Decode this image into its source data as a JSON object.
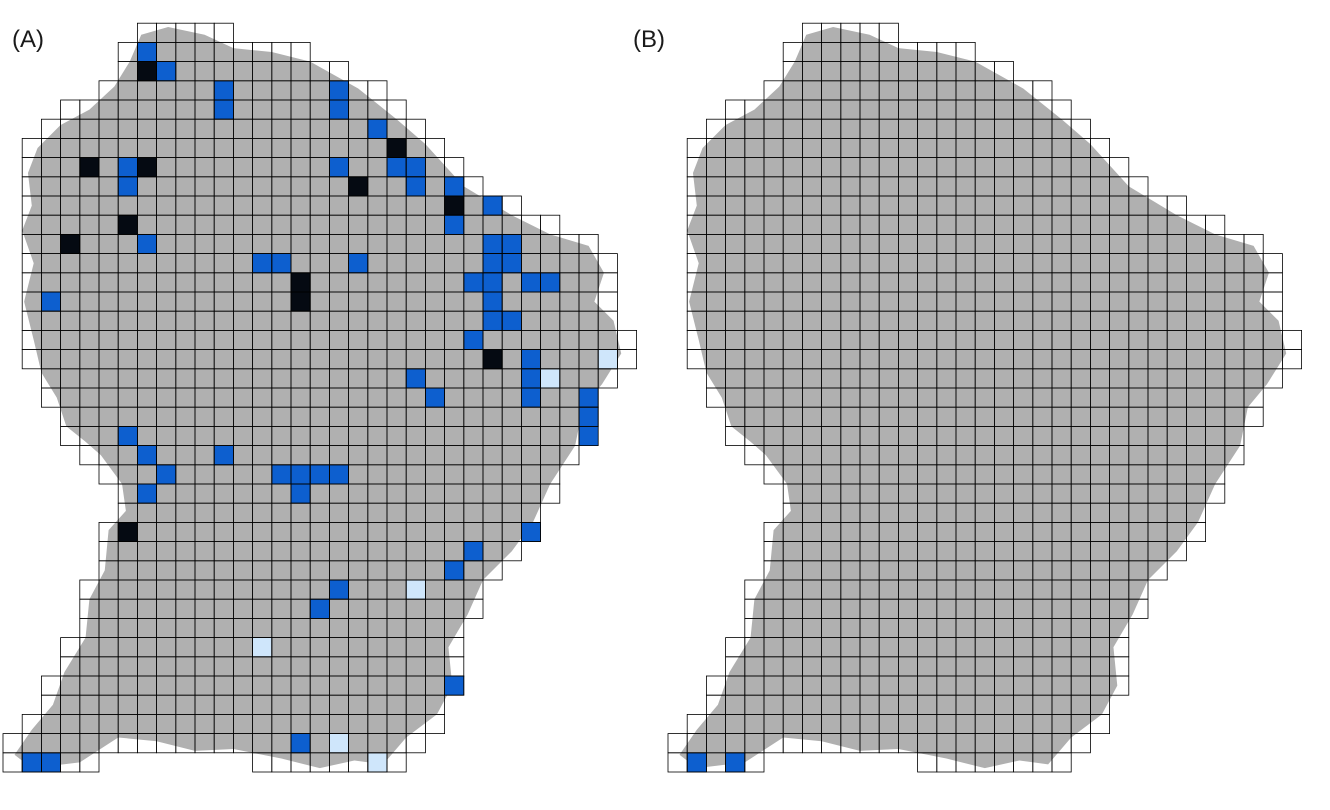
{
  "colors": {
    "land": "#b0b0b0",
    "grid_line": "#000000",
    "cell_low": "#cfe6fb",
    "cell_mid": "#0d5fcf",
    "cell_high": "#050a12"
  },
  "panels": [
    {
      "label": "(A)",
      "grid_origin": [
        3.0,
        4.0
      ],
      "highlighted_cells": [
        {
          "c": 7,
          "r": 2,
          "level": "mid"
        },
        {
          "c": 7,
          "r": 3,
          "level": "high"
        },
        {
          "c": 8,
          "r": 3,
          "level": "mid"
        },
        {
          "c": 11,
          "r": 4,
          "level": "mid"
        },
        {
          "c": 11,
          "r": 5,
          "level": "mid"
        },
        {
          "c": 17,
          "r": 4,
          "level": "mid"
        },
        {
          "c": 17,
          "r": 5,
          "level": "mid"
        },
        {
          "c": 19,
          "r": 6,
          "level": "mid"
        },
        {
          "c": 20,
          "r": 7,
          "level": "high"
        },
        {
          "c": 4,
          "r": 8,
          "level": "high"
        },
        {
          "c": 6,
          "r": 8,
          "level": "mid"
        },
        {
          "c": 7,
          "r": 8,
          "level": "high"
        },
        {
          "c": 6,
          "r": 9,
          "level": "mid"
        },
        {
          "c": 17,
          "r": 8,
          "level": "mid"
        },
        {
          "c": 20,
          "r": 8,
          "level": "mid"
        },
        {
          "c": 21,
          "r": 8,
          "level": "mid"
        },
        {
          "c": 21,
          "r": 9,
          "level": "mid"
        },
        {
          "c": 18,
          "r": 9,
          "level": "high"
        },
        {
          "c": 23,
          "r": 9,
          "level": "mid"
        },
        {
          "c": 23,
          "r": 10,
          "level": "high"
        },
        {
          "c": 25,
          "r": 10,
          "level": "mid"
        },
        {
          "c": 23,
          "r": 11,
          "level": "mid"
        },
        {
          "c": 6,
          "r": 11,
          "level": "high"
        },
        {
          "c": 7,
          "r": 12,
          "level": "mid"
        },
        {
          "c": 3,
          "r": 12,
          "level": "high"
        },
        {
          "c": 25,
          "r": 12,
          "level": "mid"
        },
        {
          "c": 26,
          "r": 12,
          "level": "mid"
        },
        {
          "c": 13,
          "r": 13,
          "level": "mid"
        },
        {
          "c": 14,
          "r": 13,
          "level": "mid"
        },
        {
          "c": 18,
          "r": 13,
          "level": "mid"
        },
        {
          "c": 25,
          "r": 13,
          "level": "mid"
        },
        {
          "c": 26,
          "r": 13,
          "level": "mid"
        },
        {
          "c": 15,
          "r": 14,
          "level": "high"
        },
        {
          "c": 15,
          "r": 15,
          "level": "high"
        },
        {
          "c": 24,
          "r": 14,
          "level": "mid"
        },
        {
          "c": 25,
          "r": 14,
          "level": "mid"
        },
        {
          "c": 27,
          "r": 14,
          "level": "mid"
        },
        {
          "c": 28,
          "r": 14,
          "level": "mid"
        },
        {
          "c": 2,
          "r": 15,
          "level": "mid"
        },
        {
          "c": 25,
          "r": 15,
          "level": "mid"
        },
        {
          "c": 25,
          "r": 16,
          "level": "mid"
        },
        {
          "c": 26,
          "r": 16,
          "level": "mid"
        },
        {
          "c": 24,
          "r": 17,
          "level": "mid"
        },
        {
          "c": 25,
          "r": 18,
          "level": "high"
        },
        {
          "c": 27,
          "r": 18,
          "level": "mid"
        },
        {
          "c": 31,
          "r": 18,
          "level": "low"
        },
        {
          "c": 21,
          "r": 19,
          "level": "mid"
        },
        {
          "c": 27,
          "r": 19,
          "level": "mid"
        },
        {
          "c": 28,
          "r": 19,
          "level": "low"
        },
        {
          "c": 22,
          "r": 20,
          "level": "mid"
        },
        {
          "c": 27,
          "r": 20,
          "level": "mid"
        },
        {
          "c": 30,
          "r": 20,
          "level": "mid"
        },
        {
          "c": 30,
          "r": 21,
          "level": "mid"
        },
        {
          "c": 30,
          "r": 22,
          "level": "mid"
        },
        {
          "c": 6,
          "r": 22,
          "level": "mid"
        },
        {
          "c": 7,
          "r": 23,
          "level": "mid"
        },
        {
          "c": 11,
          "r": 23,
          "level": "mid"
        },
        {
          "c": 8,
          "r": 24,
          "level": "mid"
        },
        {
          "c": 14,
          "r": 24,
          "level": "mid"
        },
        {
          "c": 15,
          "r": 24,
          "level": "mid"
        },
        {
          "c": 16,
          "r": 24,
          "level": "mid"
        },
        {
          "c": 17,
          "r": 24,
          "level": "mid"
        },
        {
          "c": 7,
          "r": 25,
          "level": "mid"
        },
        {
          "c": 15,
          "r": 25,
          "level": "mid"
        },
        {
          "c": 6,
          "r": 27,
          "level": "high"
        },
        {
          "c": 27,
          "r": 27,
          "level": "mid"
        },
        {
          "c": 24,
          "r": 28,
          "level": "mid"
        },
        {
          "c": 23,
          "r": 29,
          "level": "mid"
        },
        {
          "c": 17,
          "r": 30,
          "level": "mid"
        },
        {
          "c": 21,
          "r": 30,
          "level": "low"
        },
        {
          "c": 16,
          "r": 31,
          "level": "mid"
        },
        {
          "c": 13,
          "r": 33,
          "level": "low"
        },
        {
          "c": 23,
          "r": 35,
          "level": "mid"
        },
        {
          "c": 15,
          "r": 38,
          "level": "mid"
        },
        {
          "c": 17,
          "r": 38,
          "level": "low"
        },
        {
          "c": 1,
          "r": 39,
          "level": "mid"
        },
        {
          "c": 2,
          "r": 39,
          "level": "mid"
        },
        {
          "c": 19,
          "r": 39,
          "level": "low"
        }
      ]
    },
    {
      "label": "(B)",
      "grid_origin": [
        3.0,
        4.0
      ],
      "highlighted_cells": [
        {
          "c": 1,
          "r": 39,
          "level": "mid"
        },
        {
          "c": 3,
          "r": 39,
          "level": "mid"
        }
      ]
    }
  ]
}
